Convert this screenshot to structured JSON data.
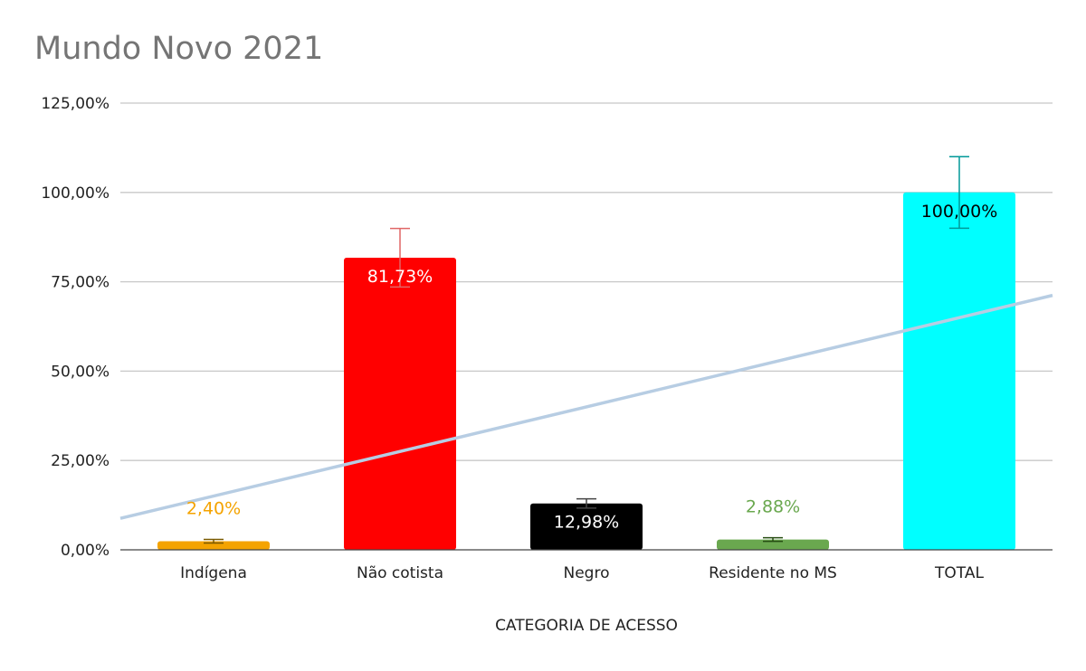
{
  "chart_data": {
    "type": "bar",
    "title": "Mundo Novo 2021",
    "xlabel": "CATEGORIA DE ACESSO",
    "ylabel": "",
    "categories": [
      "Indígena",
      "Não cotista",
      "Negro",
      "Residente no MS",
      "TOTAL"
    ],
    "values": [
      2.4,
      81.73,
      12.98,
      2.88,
      100.0
    ],
    "data_labels": [
      "2,40%",
      "81,73%",
      "12,98%",
      "2,88%",
      "100,00%"
    ],
    "bar_colors": [
      "#f4a300",
      "#ff0000",
      "#000000",
      "#6aa84f",
      "#00ffff"
    ],
    "label_colors": [
      "#f4a300",
      "#ffffff",
      "#ffffff",
      "#6aa84f",
      "#000000"
    ],
    "label_inside": [
      false,
      true,
      true,
      false,
      true
    ],
    "error_bars": [
      0.5,
      8.2,
      1.3,
      0.5,
      10.0
    ],
    "error_colors": [
      "#7a5a00",
      "#e06666",
      "#444444",
      "#274e13",
      "#009999"
    ],
    "ylim": [
      0,
      125
    ],
    "yticks": [
      0,
      25,
      50,
      75,
      100,
      125
    ],
    "ytick_labels": [
      "0,00%",
      "25,00%",
      "50,00%",
      "75,00%",
      "100,00%",
      "125,00%"
    ],
    "trendline": {
      "type": "linear",
      "color": "#b7cde3",
      "y_at_left_edge": 8.8,
      "y_at_right_edge": 71.2
    },
    "grid": true,
    "legend": "none"
  }
}
